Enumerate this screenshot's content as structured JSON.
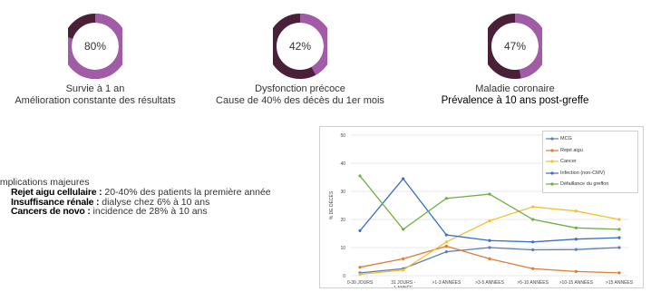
{
  "stats": [
    {
      "value": "80%",
      "percent": 80,
      "title": "Survie à 1 an",
      "subtitle": "Amélioration constante des résultats"
    },
    {
      "value": "42%",
      "percent": 42,
      "title": "Dysfonction précoce",
      "subtitle": "Cause de 40% des décès du 1er mois"
    },
    {
      "value": "47%",
      "percent": 47,
      "title": "Maladie coronaire",
      "subtitle": "Prévalence à 10 ans post-greffe"
    }
  ],
  "ring_colors": {
    "filled": "#a15ba7",
    "remaining": "#4a2038"
  },
  "complications": {
    "title": "omplications majeures",
    "items": [
      {
        "label": "Rejet aigu cellulaire :",
        "text": " 20-40% des patients la première année"
      },
      {
        "label": "Insuffisance rénale :",
        "text": " dialyse chez 6% à 10 ans"
      },
      {
        "label": "Cancers de novo :",
        "text": " incidence de 28% à 10 ans"
      }
    ]
  },
  "chart_data": {
    "type": "line",
    "ylabel": "% DE DÉCÈS",
    "ylim": [
      0,
      50
    ],
    "yticks": [
      0,
      10,
      20,
      30,
      40,
      50
    ],
    "categories": [
      "0-30 JOURS",
      "31 JOURS - 1 ANNÉE",
      ">1-3 ANNÉES",
      ">3-5 ANNÉES",
      ">5-10 ANNÉES",
      ">10-15 ANNÉES",
      ">15 ANNÉES"
    ],
    "grid": true,
    "legend": "top-right",
    "series": [
      {
        "name": "MCG",
        "color": "#5b7fb5",
        "values": [
          1,
          2.5,
          8.5,
          10,
          9.2,
          9.3,
          10
        ]
      },
      {
        "name": "Rejet aigu",
        "color": "#e07b39",
        "values": [
          3,
          6,
          10.5,
          6,
          2.5,
          1.5,
          1
        ]
      },
      {
        "name": "Cancer",
        "color": "#f2c12e",
        "values": [
          0.5,
          2,
          12,
          19.5,
          24.5,
          23,
          20
        ]
      },
      {
        "name": "Infection (non-CMV)",
        "color": "#3a6fc4",
        "values": [
          16,
          34.5,
          14.5,
          12.5,
          12,
          13,
          13.5
        ]
      },
      {
        "name": "Défaillance du greffon",
        "color": "#6fae45",
        "values": [
          35.5,
          16.5,
          27.5,
          29,
          20,
          17,
          16.5
        ]
      }
    ]
  }
}
